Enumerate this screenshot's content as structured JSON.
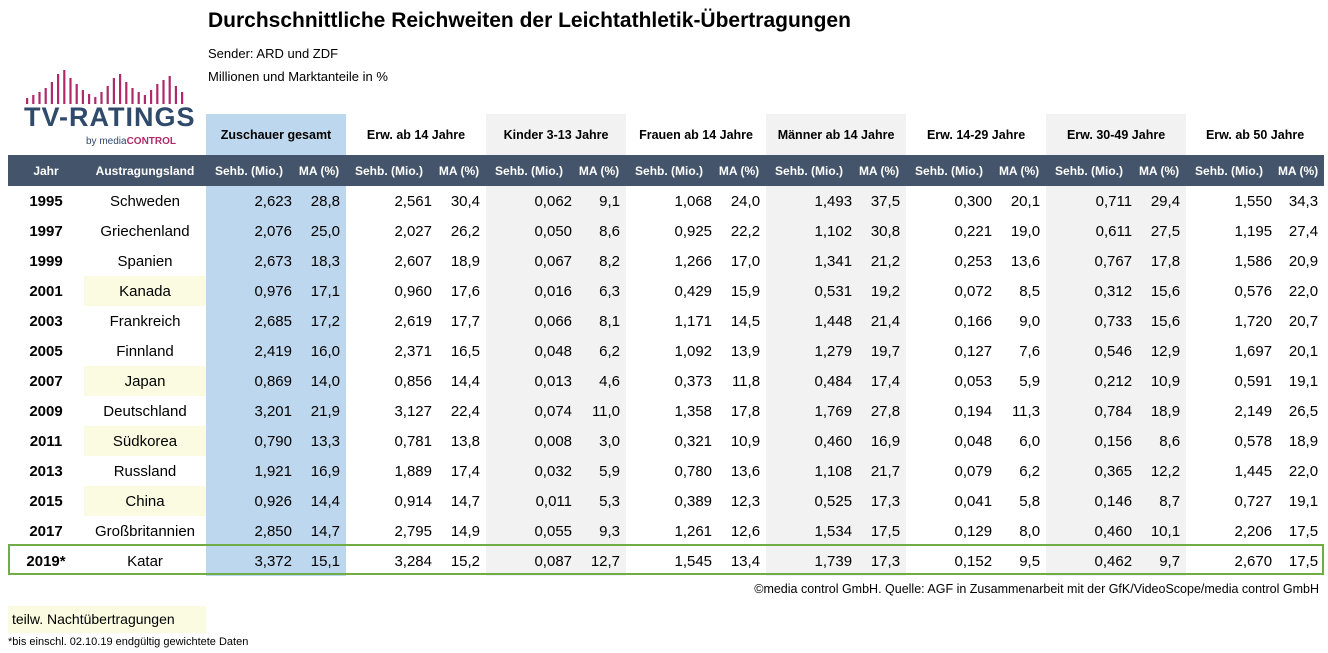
{
  "header": {
    "title": "Durchschnittliche Reichweiten der Leichtathletik-Übertragungen",
    "sender": "Sender: ARD und ZDF",
    "units": "Millionen und Marktanteile in %"
  },
  "logo": {
    "text": "TV-RATINGS",
    "by": "by media",
    "by_brand": "CONTROL",
    "colors": {
      "bars": "#b02a6a",
      "text": "#2f4a6b"
    }
  },
  "groups": [
    "Zuschauer gesamt",
    "Erw. ab 14 Jahre",
    "Kinder 3-13 Jahre",
    "Frauen ab 14 Jahre",
    "Männer ab 14 Jahre",
    "Erw. 14-29 Jahre",
    "Erw. 30-49 Jahre",
    "Erw. ab 50 Jahre"
  ],
  "columns": [
    "Jahr",
    "Austragungsland",
    "Sehb. (Mio.)",
    "MA (%)",
    "Sehb. (Mio.)",
    "MA (%)",
    "Sehb. (Mio.)",
    "MA (%)",
    "Sehb. (Mio.)",
    "MA (%)",
    "Sehb. (Mio.)",
    "MA (%)",
    "Sehb. (Mio.)",
    "MA (%)",
    "Sehb. (Mio.)",
    "MA (%)",
    "Sehb. (Mio.)",
    "MA (%)"
  ],
  "rows": [
    {
      "year": "1995",
      "country": "Schweden",
      "night": false,
      "values": [
        "2,623",
        "28,8",
        "2,561",
        "30,4",
        "0,062",
        "9,1",
        "1,068",
        "24,0",
        "1,493",
        "37,5",
        "0,300",
        "20,1",
        "0,711",
        "29,4",
        "1,550",
        "34,3"
      ]
    },
    {
      "year": "1997",
      "country": "Griechenland",
      "night": false,
      "values": [
        "2,076",
        "25,0",
        "2,027",
        "26,2",
        "0,050",
        "8,6",
        "0,925",
        "22,2",
        "1,102",
        "30,8",
        "0,221",
        "19,0",
        "0,611",
        "27,5",
        "1,195",
        "27,4"
      ]
    },
    {
      "year": "1999",
      "country": "Spanien",
      "night": false,
      "values": [
        "2,673",
        "18,3",
        "2,607",
        "18,9",
        "0,067",
        "8,2",
        "1,266",
        "17,0",
        "1,341",
        "21,2",
        "0,253",
        "13,6",
        "0,767",
        "17,8",
        "1,586",
        "20,9"
      ]
    },
    {
      "year": "2001",
      "country": "Kanada",
      "night": true,
      "values": [
        "0,976",
        "17,1",
        "0,960",
        "17,6",
        "0,016",
        "6,3",
        "0,429",
        "15,9",
        "0,531",
        "19,2",
        "0,072",
        "8,5",
        "0,312",
        "15,6",
        "0,576",
        "22,0"
      ]
    },
    {
      "year": "2003",
      "country": "Frankreich",
      "night": false,
      "values": [
        "2,685",
        "17,2",
        "2,619",
        "17,7",
        "0,066",
        "8,1",
        "1,171",
        "14,5",
        "1,448",
        "21,4",
        "0,166",
        "9,0",
        "0,733",
        "15,6",
        "1,720",
        "20,7"
      ]
    },
    {
      "year": "2005",
      "country": "Finnland",
      "night": false,
      "values": [
        "2,419",
        "16,0",
        "2,371",
        "16,5",
        "0,048",
        "6,2",
        "1,092",
        "13,9",
        "1,279",
        "19,7",
        "0,127",
        "7,6",
        "0,546",
        "12,9",
        "1,697",
        "20,1"
      ]
    },
    {
      "year": "2007",
      "country": "Japan",
      "night": true,
      "values": [
        "0,869",
        "14,0",
        "0,856",
        "14,4",
        "0,013",
        "4,6",
        "0,373",
        "11,8",
        "0,484",
        "17,4",
        "0,053",
        "5,9",
        "0,212",
        "10,9",
        "0,591",
        "19,1"
      ]
    },
    {
      "year": "2009",
      "country": "Deutschland",
      "night": false,
      "values": [
        "3,201",
        "21,9",
        "3,127",
        "22,4",
        "0,074",
        "11,0",
        "1,358",
        "17,8",
        "1,769",
        "27,8",
        "0,194",
        "11,3",
        "0,784",
        "18,9",
        "2,149",
        "26,5"
      ]
    },
    {
      "year": "2011",
      "country": "Südkorea",
      "night": true,
      "values": [
        "0,790",
        "13,3",
        "0,781",
        "13,8",
        "0,008",
        "3,0",
        "0,321",
        "10,9",
        "0,460",
        "16,9",
        "0,048",
        "6,0",
        "0,156",
        "8,6",
        "0,578",
        "18,9"
      ]
    },
    {
      "year": "2013",
      "country": "Russland",
      "night": false,
      "values": [
        "1,921",
        "16,9",
        "1,889",
        "17,4",
        "0,032",
        "5,9",
        "0,780",
        "13,6",
        "1,108",
        "21,7",
        "0,079",
        "6,2",
        "0,365",
        "12,2",
        "1,445",
        "22,0"
      ]
    },
    {
      "year": "2015",
      "country": "China",
      "night": true,
      "values": [
        "0,926",
        "14,4",
        "0,914",
        "14,7",
        "0,011",
        "5,3",
        "0,389",
        "12,3",
        "0,525",
        "17,3",
        "0,041",
        "5,8",
        "0,146",
        "8,7",
        "0,727",
        "19,1"
      ]
    },
    {
      "year": "2017",
      "country": "Großbritannien",
      "night": false,
      "values": [
        "2,850",
        "14,7",
        "2,795",
        "14,9",
        "0,055",
        "9,3",
        "1,261",
        "12,6",
        "1,534",
        "17,5",
        "0,129",
        "8,0",
        "0,460",
        "10,1",
        "2,206",
        "17,5"
      ]
    },
    {
      "year": "2019*",
      "country": "Katar",
      "night": false,
      "values": [
        "3,372",
        "15,1",
        "3,284",
        "15,2",
        "0,087",
        "12,7",
        "1,545",
        "13,4",
        "1,739",
        "17,3",
        "0,152",
        "9,5",
        "0,462",
        "9,7",
        "2,670",
        "17,5"
      ]
    }
  ],
  "source": "©media control GmbH. Quelle: AGF in Zusammenarbeit mit der GfK/VideoScope/media control GmbH",
  "legend": "teilw. Nachtübertragungen",
  "footnote": "*bis einschl. 02.10.19 endgültig gewichtete Daten",
  "colors": {
    "header_bg": "#44546a",
    "highlight_blue": "#bdd7ee",
    "shade_grey": "#f2f2f2",
    "night_bg": "#fbfbe2",
    "katar_border": "#70ad47"
  }
}
